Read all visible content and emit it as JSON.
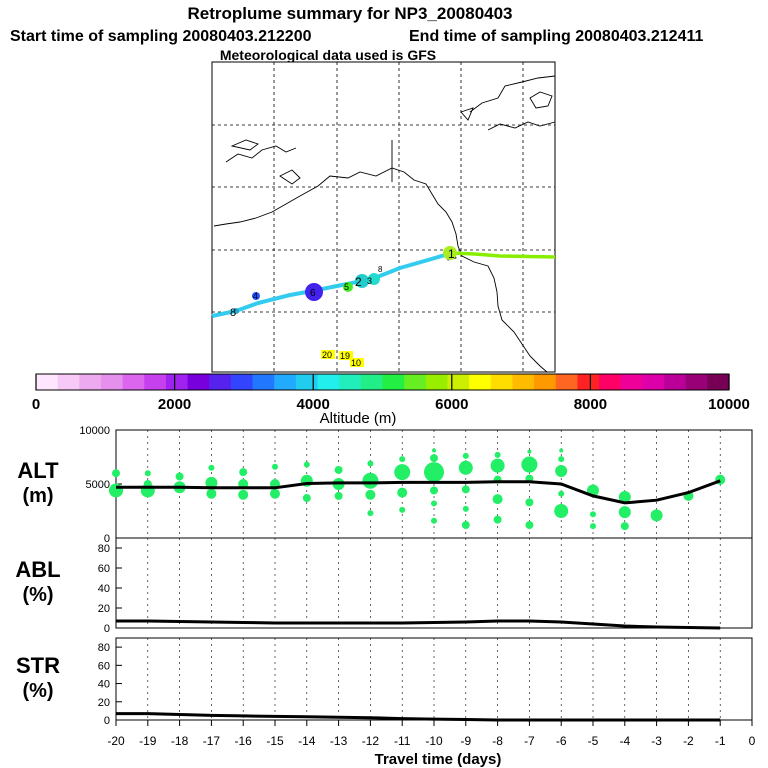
{
  "header": {
    "title": "Retroplume summary for NP3_20080403",
    "start_time": "Start time of sampling 20080403.212200",
    "end_time": "End time of sampling 20080403.212411",
    "met_data": "Meteorological data used is GFS"
  },
  "colors": {
    "grid": "#000000",
    "coast": "#000000",
    "plume_points": "#22ee66",
    "line": "#000000"
  },
  "map": {
    "trajectory_labels": [
      {
        "text": "1",
        "color": "#aaee00"
      },
      {
        "text": "2",
        "color": "#22dddd"
      },
      {
        "text": "3",
        "color": "#22dddd"
      },
      {
        "text": "4",
        "color": "#2244ff"
      },
      {
        "text": "5",
        "color": "#44ee00"
      },
      {
        "text": "6",
        "color": "#5511ee"
      },
      {
        "text": "8",
        "color": "#22dddd"
      },
      {
        "text": "10",
        "color": "#ffff00"
      },
      {
        "text": "19",
        "color": "#ffff00"
      },
      {
        "text": "20",
        "color": "#ffff00"
      }
    ]
  },
  "colorbar": {
    "label": "Altitude (m)",
    "ticks": [
      "0",
      "2000",
      "4000",
      "6000",
      "8000",
      "10000"
    ],
    "colors": [
      "#ffe6ff",
      "#f7c9f7",
      "#eeaaee",
      "#e690ee",
      "#dd66ee",
      "#c640ee",
      "#a022ee",
      "#7700dd",
      "#5522ee",
      "#3344ff",
      "#2277ff",
      "#22aaff",
      "#22ccee",
      "#22eeee",
      "#22eebb",
      "#22ee88",
      "#22ee44",
      "#66ee22",
      "#99ee00",
      "#ccee00",
      "#ffff00",
      "#ffdd00",
      "#ffbb00",
      "#ff9900",
      "#ff6622",
      "#ff2222",
      "#ff0066",
      "#ee0099",
      "#dd00aa",
      "#bb0099",
      "#990077",
      "#770055"
    ]
  },
  "chart_data": [
    {
      "type": "scatter",
      "name": "ALT",
      "ylabel": "ALT",
      "yunit": "(m)",
      "ylim": [
        0,
        10000
      ],
      "yticks": [
        "10000",
        "5000",
        "0"
      ],
      "x": [
        -20,
        -19,
        -18,
        -17,
        -16,
        -15,
        -14,
        -13,
        -12,
        -11,
        -10,
        -9,
        -8,
        -7,
        -6,
        -5,
        -4,
        -3,
        -2,
        -1
      ],
      "median_line": [
        4700,
        4700,
        4700,
        4650,
        4650,
        4650,
        5050,
        5100,
        5100,
        5150,
        5150,
        5150,
        5200,
        5200,
        5000,
        3900,
        3250,
        3500,
        4200,
        5300
      ],
      "points": [
        [
          -20,
          4400,
          7
        ],
        [
          -20,
          6000,
          4
        ],
        [
          -19,
          4400,
          7
        ],
        [
          -19,
          5000,
          4
        ],
        [
          -19,
          6000,
          3
        ],
        [
          -18,
          4700,
          6
        ],
        [
          -18,
          5700,
          4
        ],
        [
          -17,
          4100,
          5
        ],
        [
          -17,
          5100,
          6
        ],
        [
          -17,
          6500,
          3
        ],
        [
          -16,
          4000,
          5
        ],
        [
          -16,
          5000,
          5
        ],
        [
          -16,
          6100,
          4
        ],
        [
          -15,
          4100,
          5
        ],
        [
          -15,
          5000,
          5
        ],
        [
          -15,
          6600,
          3
        ],
        [
          -14,
          3700,
          4
        ],
        [
          -14,
          5300,
          6
        ],
        [
          -14,
          6800,
          3
        ],
        [
          -13,
          3900,
          4
        ],
        [
          -13,
          5000,
          6
        ],
        [
          -13,
          6300,
          4
        ],
        [
          -12,
          2300,
          3
        ],
        [
          -12,
          4000,
          5
        ],
        [
          -12,
          5300,
          8
        ],
        [
          -12,
          6900,
          3
        ],
        [
          -11,
          2600,
          3
        ],
        [
          -11,
          4200,
          5
        ],
        [
          -11,
          6100,
          8
        ],
        [
          -11,
          7300,
          3
        ],
        [
          -10,
          1600,
          3
        ],
        [
          -10,
          3200,
          3
        ],
        [
          -10,
          4400,
          4
        ],
        [
          -10,
          6100,
          10
        ],
        [
          -10,
          7400,
          4
        ],
        [
          -10,
          8100,
          2
        ],
        [
          -9,
          1200,
          4
        ],
        [
          -9,
          2700,
          3
        ],
        [
          -9,
          4500,
          4
        ],
        [
          -9,
          6500,
          7
        ],
        [
          -9,
          7600,
          3
        ],
        [
          -8,
          1700,
          4
        ],
        [
          -8,
          3600,
          5
        ],
        [
          -8,
          5400,
          4
        ],
        [
          -8,
          6700,
          7
        ],
        [
          -8,
          7700,
          3
        ],
        [
          -7,
          1200,
          4
        ],
        [
          -7,
          3300,
          4
        ],
        [
          -7,
          5500,
          4
        ],
        [
          -7,
          6800,
          8
        ],
        [
          -7,
          8000,
          2
        ],
        [
          -6,
          2500,
          7
        ],
        [
          -6,
          4100,
          3
        ],
        [
          -6,
          6200,
          6
        ],
        [
          -6,
          7300,
          3
        ],
        [
          -6,
          8100,
          2
        ],
        [
          -5,
          1100,
          3
        ],
        [
          -5,
          2200,
          3
        ],
        [
          -5,
          4400,
          6
        ],
        [
          -4,
          1100,
          4
        ],
        [
          -4,
          2400,
          6
        ],
        [
          -4,
          3800,
          6
        ],
        [
          -3,
          2100,
          6
        ],
        [
          -2,
          3900,
          5
        ],
        [
          -1,
          5400,
          5
        ]
      ]
    },
    {
      "type": "line",
      "name": "ABL",
      "ylabel": "ABL",
      "yunit": "(%)",
      "ylim": [
        0,
        90
      ],
      "yticks": [
        "80",
        "60",
        "40",
        "20",
        "0"
      ],
      "x": [
        -20,
        -19,
        -18,
        -17,
        -16,
        -15,
        -14,
        -13,
        -12,
        -11,
        -10,
        -9,
        -8,
        -7,
        -6,
        -5,
        -4,
        -3,
        -2,
        -1
      ],
      "values": [
        7,
        7,
        6.5,
        6,
        5.5,
        5,
        5,
        5,
        5,
        5,
        5.5,
        6,
        7,
        7,
        6,
        4,
        2,
        1,
        0.5,
        0
      ]
    },
    {
      "type": "line",
      "name": "STR",
      "ylabel": "STR",
      "yunit": "(%)",
      "ylim": [
        0,
        90
      ],
      "yticks": [
        "80",
        "60",
        "40",
        "20",
        "0"
      ],
      "x": [
        -20,
        -19,
        -18,
        -17,
        -16,
        -15,
        -14,
        -13,
        -12,
        -11,
        -10,
        -9,
        -8,
        -7,
        -6,
        -5,
        -4,
        -3,
        -2,
        -1
      ],
      "values": [
        7,
        7,
        6,
        5,
        4.5,
        4,
        3.5,
        3,
        2.5,
        1.5,
        1,
        0.5,
        0,
        0,
        0,
        0,
        0,
        0,
        0,
        0
      ]
    }
  ],
  "xaxis": {
    "label": "Travel time (days)",
    "ticks": [
      "-20",
      "-19",
      "-18",
      "-17",
      "-16",
      "-15",
      "-14",
      "-13",
      "-12",
      "-11",
      "-10",
      "-9",
      "-8",
      "-7",
      "-6",
      "-5",
      "-4",
      "-3",
      "-2",
      "-1",
      "0"
    ]
  }
}
